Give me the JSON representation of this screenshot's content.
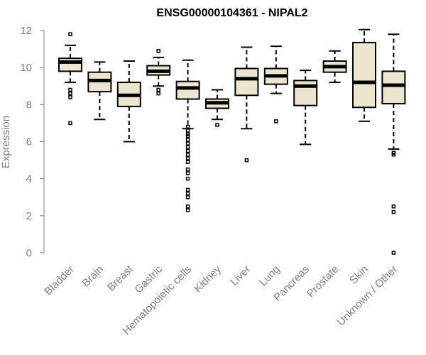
{
  "chart_data": {
    "type": "boxplot",
    "title": "ENSG00000104361 - NIPAL2",
    "ylabel": "Expression",
    "ylim": [
      0,
      12
    ],
    "y_ticks": [
      "0",
      "2",
      "4",
      "6",
      "8",
      "10",
      "12"
    ],
    "box_color": "#EDE6CF",
    "categories": [
      "Bladder",
      "Brain",
      "Breast",
      "Gastric",
      "Hematopoietic cells",
      "Kidney",
      "Liver",
      "Lung",
      "Pancreas",
      "Prostate",
      "Skin",
      "Unknown / Other"
    ],
    "boxes": [
      {
        "whisker_low": 9.2,
        "q1": 9.8,
        "median": 10.3,
        "q3": 10.5,
        "whisker_high": 11.2,
        "outliers": [
          11.8,
          8.8,
          8.6,
          8.4,
          7.0
        ]
      },
      {
        "whisker_low": 7.2,
        "q1": 8.7,
        "median": 9.3,
        "q3": 9.75,
        "whisker_high": 10.3,
        "outliers": []
      },
      {
        "whisker_low": 6.0,
        "q1": 7.9,
        "median": 8.5,
        "q3": 9.2,
        "whisker_high": 10.35,
        "outliers": []
      },
      {
        "whisker_low": 9.0,
        "q1": 9.6,
        "median": 9.8,
        "q3": 10.1,
        "whisker_high": 10.55,
        "outliers": [
          10.9,
          8.8,
          8.6
        ]
      },
      {
        "whisker_low": 6.7,
        "q1": 8.3,
        "median": 8.9,
        "q3": 9.25,
        "whisker_high": 10.4,
        "outliers": [
          6.8,
          6.6,
          6.4,
          6.3,
          6.1,
          5.9,
          5.7,
          5.5,
          5.3,
          5.1,
          4.9,
          4.5,
          4.3,
          4.0,
          3.4,
          3.2,
          3.0,
          2.5,
          2.3
        ]
      },
      {
        "whisker_low": 7.2,
        "q1": 7.8,
        "median": 8.1,
        "q3": 8.3,
        "whisker_high": 8.8,
        "outliers": [
          6.9
        ]
      },
      {
        "whisker_low": 6.7,
        "q1": 8.5,
        "median": 9.4,
        "q3": 9.95,
        "whisker_high": 11.1,
        "outliers": [
          5.0
        ]
      },
      {
        "whisker_low": 8.6,
        "q1": 9.1,
        "median": 9.55,
        "q3": 9.95,
        "whisker_high": 11.15,
        "outliers": [
          7.1
        ]
      },
      {
        "whisker_low": 5.85,
        "q1": 7.95,
        "median": 9.0,
        "q3": 9.3,
        "whisker_high": 9.85,
        "outliers": []
      },
      {
        "whisker_low": 9.2,
        "q1": 9.75,
        "median": 10.05,
        "q3": 10.35,
        "whisker_high": 10.9,
        "outliers": []
      },
      {
        "whisker_low": 7.1,
        "q1": 7.85,
        "median": 9.2,
        "q3": 11.35,
        "whisker_high": 12.05,
        "outliers": []
      },
      {
        "whisker_low": 5.6,
        "q1": 8.05,
        "median": 9.05,
        "q3": 9.8,
        "whisker_high": 11.8,
        "outliers": [
          5.4,
          5.3,
          2.5,
          2.2,
          0.0
        ]
      }
    ]
  }
}
